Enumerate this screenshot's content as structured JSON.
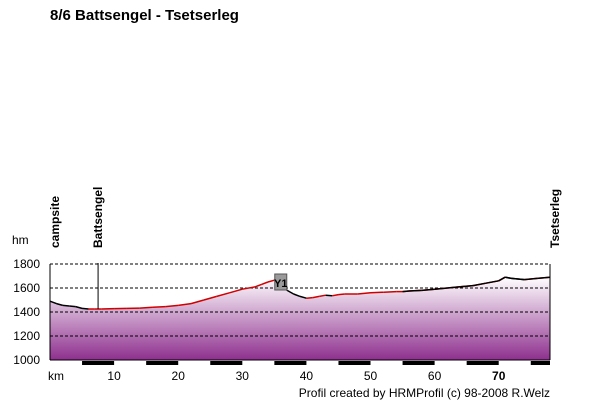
{
  "header": {
    "title": "8/6 Battsengel - Tsetserleg"
  },
  "footer": {
    "credit": "Profil created by HRMProfil (c) 98-2008 R.Welz"
  },
  "colors": {
    "climb": "#d00000",
    "descent": "#000000",
    "fill_top": "#ffffff",
    "fill_bottom": "#8e2f8e",
    "grid": "#000000"
  },
  "chart_data": {
    "type": "area",
    "title": "8/6 Battsengel - Tsetserleg",
    "xlabel": "km",
    "ylabel": "hm",
    "xlim": [
      0,
      78
    ],
    "ylim": [
      1000,
      1800
    ],
    "xticks": [
      10,
      20,
      30,
      40,
      50,
      60,
      70
    ],
    "xtick_labels": [
      "10",
      "20",
      "30",
      "40",
      "50",
      "60",
      "70"
    ],
    "yticks": [
      1000,
      1200,
      1400,
      1600,
      1800
    ],
    "ytick_labels": [
      "1000",
      "1200",
      "1400",
      "1600",
      "1800"
    ],
    "grid": "horizontal dashed",
    "waypoints": [
      {
        "km": 0,
        "label": "campsite"
      },
      {
        "km": 7.5,
        "label": "Battsengel"
      },
      {
        "km": 78,
        "label": "Tsetserleg"
      }
    ],
    "marker": {
      "km": 36,
      "elevation": 1650,
      "label": "Y1"
    },
    "series": [
      {
        "x": [
          0,
          1,
          2,
          3,
          4,
          5,
          6,
          7,
          8,
          10,
          12,
          14,
          16,
          18,
          20,
          22,
          24,
          26,
          28,
          30,
          32,
          33,
          34,
          35,
          35.5,
          36,
          37,
          38,
          39,
          40,
          41,
          42,
          43,
          44,
          45,
          46,
          48,
          50,
          52,
          54,
          55,
          56,
          58,
          60,
          62,
          64,
          66,
          68,
          70,
          71,
          72,
          74,
          76,
          78
        ],
        "y": [
          1490,
          1470,
          1455,
          1450,
          1445,
          1430,
          1425,
          1425,
          1425,
          1428,
          1430,
          1432,
          1440,
          1445,
          1455,
          1470,
          1500,
          1530,
          1560,
          1590,
          1610,
          1630,
          1650,
          1665,
          1670,
          1620,
          1580,
          1550,
          1530,
          1515,
          1520,
          1530,
          1540,
          1535,
          1545,
          1550,
          1550,
          1560,
          1565,
          1570,
          1570,
          1575,
          1580,
          1590,
          1600,
          1610,
          1620,
          1640,
          1660,
          1690,
          1680,
          1670,
          1680,
          1690
        ]
      }
    ]
  }
}
